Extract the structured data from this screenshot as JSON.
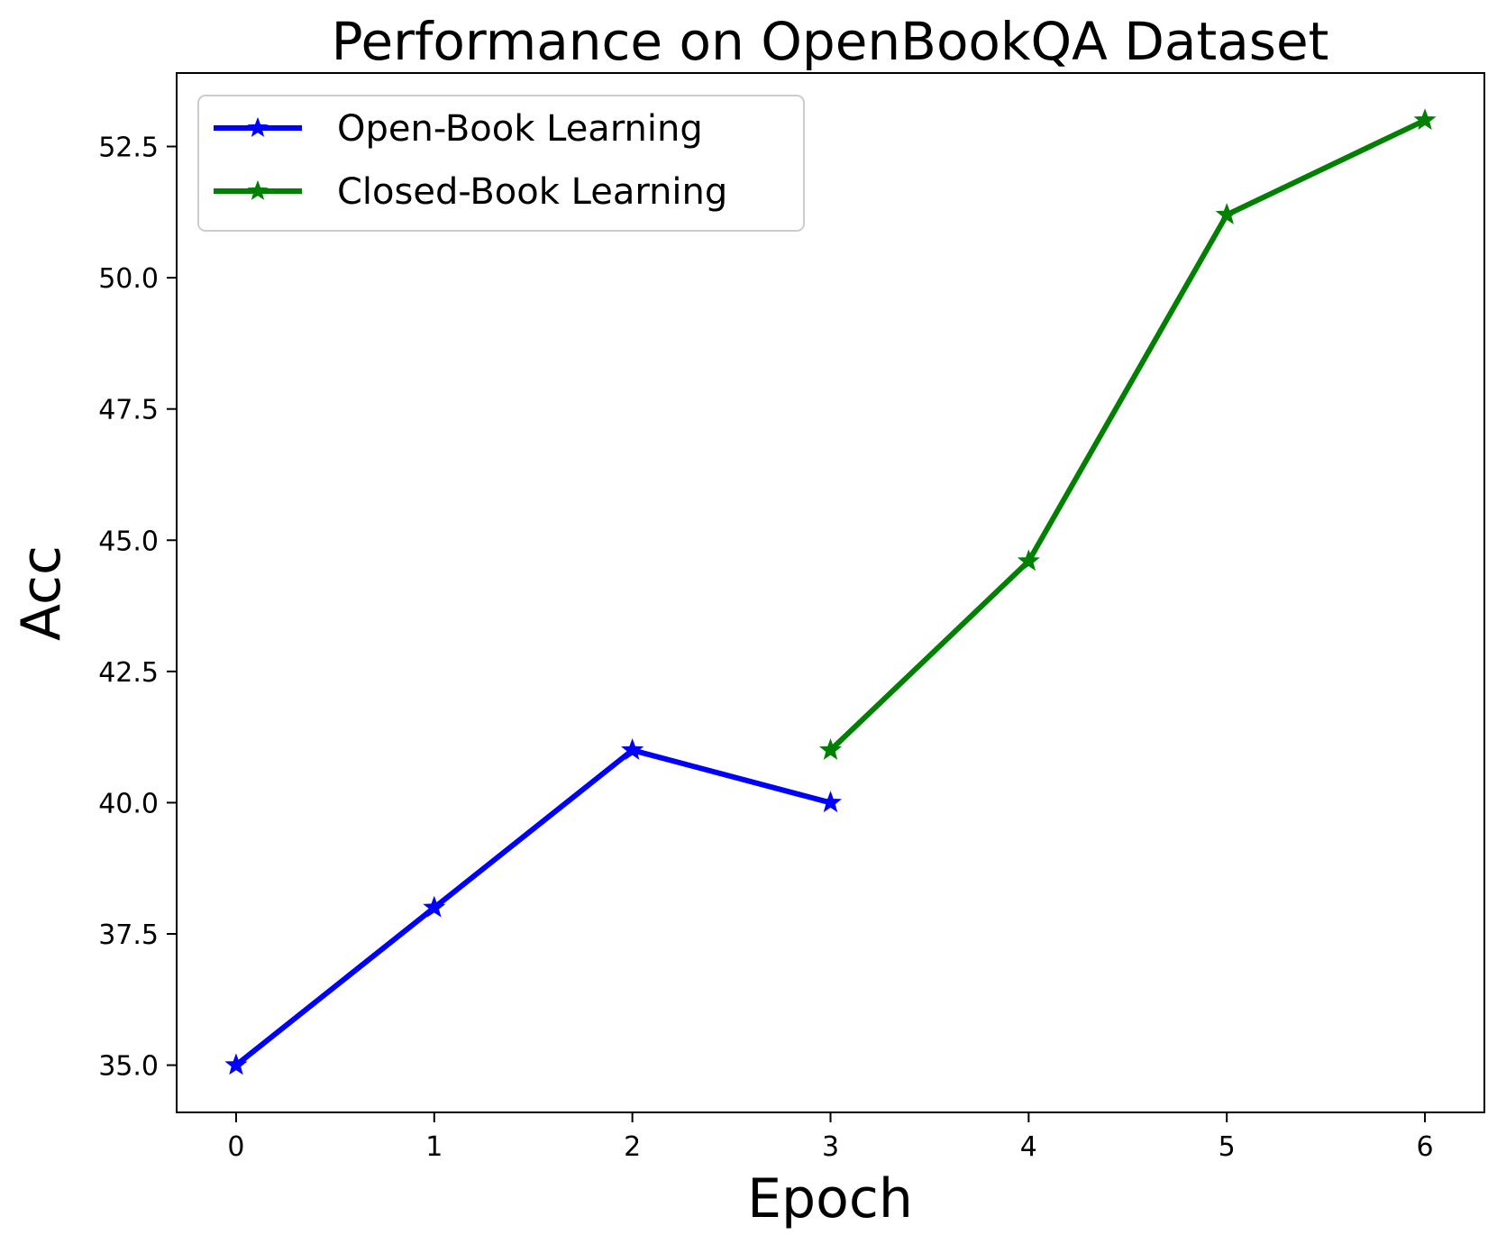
{
  "chart_data": {
    "type": "line",
    "title": "Performance on OpenBookQA Dataset",
    "xlabel": "Epoch",
    "ylabel": "Acc",
    "xlim": [
      -0.3,
      6.3
    ],
    "ylim": [
      34.1,
      53.9
    ],
    "x_ticks": [
      "0",
      "1",
      "2",
      "3",
      "4",
      "5",
      "6"
    ],
    "y_ticks": [
      "35.0",
      "37.5",
      "40.0",
      "42.5",
      "45.0",
      "47.5",
      "50.0",
      "52.5"
    ],
    "grid": false,
    "legend_position": "top-left",
    "series": [
      {
        "name": "Open-Book Learning",
        "color": "#0000ff",
        "marker": "star",
        "x": [
          0,
          1,
          2,
          3
        ],
        "y": [
          35.0,
          38.0,
          41.0,
          40.0
        ]
      },
      {
        "name": "Closed-Book Learning",
        "color": "#008000",
        "marker": "star",
        "x": [
          3,
          4,
          5,
          6
        ],
        "y": [
          41.0,
          44.6,
          51.2,
          53.0
        ]
      }
    ]
  }
}
